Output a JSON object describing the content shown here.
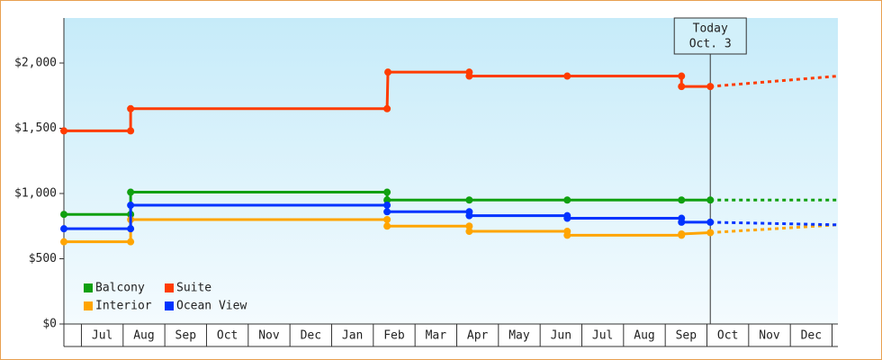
{
  "chart_data": {
    "type": "line",
    "xlim": [
      -0.92,
      17.64
    ],
    "xticks": [
      {
        "value": 0,
        "label": "Jul"
      },
      {
        "value": 1,
        "label": "Aug"
      },
      {
        "value": 2,
        "label": "Sep"
      },
      {
        "value": 3,
        "label": "Oct"
      },
      {
        "value": 4,
        "label": "Nov"
      },
      {
        "value": 5,
        "label": "Dec"
      },
      {
        "value": 6,
        "label": "Jan"
      },
      {
        "value": 7,
        "label": "Feb"
      },
      {
        "value": 8,
        "label": "Mar"
      },
      {
        "value": 9,
        "label": "Apr"
      },
      {
        "value": 10,
        "label": "May"
      },
      {
        "value": 11,
        "label": "Jun"
      },
      {
        "value": 12,
        "label": "Jul"
      },
      {
        "value": 13,
        "label": "Aug"
      },
      {
        "value": 14,
        "label": "Sep"
      },
      {
        "value": 15,
        "label": "Oct"
      },
      {
        "value": 16,
        "label": "Nov"
      },
      {
        "value": 17,
        "label": "Dec"
      }
    ],
    "ylim": [
      0,
      2345
    ],
    "yticks": [
      {
        "value": 0,
        "label": "$0"
      },
      {
        "value": 500,
        "label": "$500"
      },
      {
        "value": 1000,
        "label": "$1,000"
      },
      {
        "value": 1500,
        "label": "$1,500"
      },
      {
        "value": 2000,
        "label": "$2,000"
      }
    ],
    "annotation": {
      "lines": [
        "Today",
        "Oct. 3"
      ],
      "x": 14.58
    },
    "legend": "bottom-left",
    "series": [
      {
        "name": "Balcony",
        "color": "#10a010",
        "x": [
          -0.92,
          0.68,
          0.68,
          6.83,
          6.83,
          8.8,
          11.15,
          13.89,
          14.58
        ],
        "values": [
          840,
          840,
          1010,
          1010,
          950,
          950,
          950,
          950,
          950
        ],
        "forecast_x": [
          14.58,
          17.64
        ],
        "forecast_values": [
          950,
          950
        ]
      },
      {
        "name": "Suite",
        "color": "#ff3c00",
        "x": [
          -0.92,
          0.68,
          0.68,
          6.83,
          6.85,
          8.8,
          8.8,
          11.15,
          13.89,
          13.89,
          14.58
        ],
        "values": [
          1480,
          1480,
          1650,
          1650,
          1930,
          1930,
          1900,
          1900,
          1900,
          1820,
          1820
        ],
        "forecast_x": [
          14.58,
          17.64
        ],
        "forecast_values": [
          1820,
          1900
        ]
      },
      {
        "name": "Interior",
        "color": "#ffa500",
        "x": [
          -0.92,
          0.68,
          0.68,
          6.83,
          6.83,
          8.8,
          8.8,
          11.15,
          11.15,
          13.89,
          13.89,
          14.58
        ],
        "values": [
          630,
          630,
          800,
          800,
          750,
          750,
          710,
          710,
          680,
          680,
          690,
          700
        ],
        "forecast_x": [
          14.58,
          17.64
        ],
        "forecast_values": [
          700,
          760
        ]
      },
      {
        "name": "Ocean View",
        "color": "#0033ff",
        "x": [
          -0.92,
          0.68,
          0.68,
          6.83,
          6.83,
          8.8,
          8.8,
          11.15,
          11.15,
          13.89,
          13.89,
          14.58
        ],
        "values": [
          730,
          730,
          910,
          910,
          860,
          860,
          830,
          830,
          810,
          810,
          780,
          780
        ],
        "forecast_x": [
          14.58,
          17.64
        ],
        "forecast_values": [
          780,
          760
        ]
      }
    ]
  }
}
